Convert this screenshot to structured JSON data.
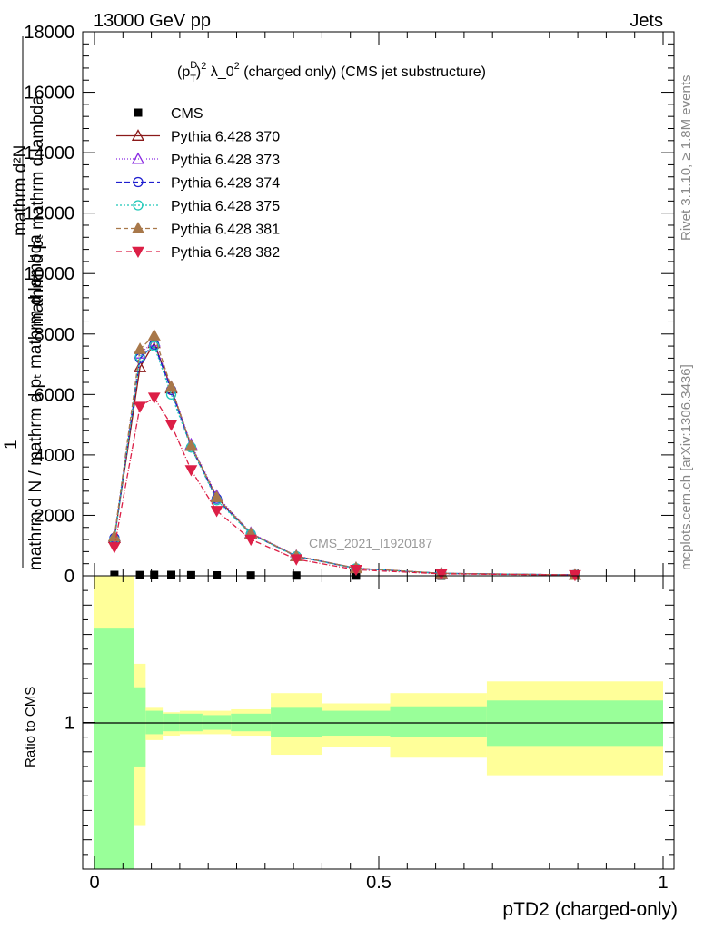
{
  "header": {
    "left": "13000 GeV pp",
    "right": "Jets"
  },
  "side_labels": {
    "rivet": "Rivet 3.1.10, ≥ 1.8M events",
    "mcplots": "mcplots.cern.ch [arXiv:1306.3436]"
  },
  "chart_data": [
    {
      "type": "line",
      "title": "(p_T^D)^2 λ_0^2 (charged only) (CMS jet substructure)",
      "title_parts": {
        "base": "(p",
        "sup1": "D",
        "sub1": "T",
        "mid": ")",
        "sup2": "2",
        "rest": " λ_0",
        "sup3": "2",
        "tail": " (charged only) (CMS jet substructure)"
      },
      "watermark": "CMS_2021_I1920187",
      "ylabel_lines": [
        "mathrm d²N",
        "1",
        "mathrm d N / mathrm d pₜ mathrm d lambda"
      ],
      "ylabel_overlap": [
        "mathrm d²N",
        "mathrm d pₜ mathrm d lambda",
        "1",
        "mathrm d N / mathrm d pₜ mathrm d lambda"
      ],
      "xlim": [
        0,
        1
      ],
      "ylim": [
        0,
        18000
      ],
      "y_ticks": [
        0,
        2000,
        4000,
        6000,
        8000,
        10000,
        12000,
        14000,
        16000,
        18000
      ],
      "y_tick_labels": [
        "0",
        "2000",
        "4000",
        "6000",
        "8000",
        "10000",
        "12000",
        "14000",
        "16000",
        "18000"
      ],
      "legend_position": "top-left",
      "x": [
        0.035,
        0.08,
        0.105,
        0.135,
        0.17,
        0.215,
        0.275,
        0.355,
        0.46,
        0.61,
        0.845
      ],
      "series": [
        {
          "name": "CMS",
          "color": "#000000",
          "marker": "square-filled",
          "dash": "",
          "values": [
            30,
            25,
            30,
            30,
            20,
            15,
            10,
            8,
            5,
            3,
            2
          ]
        },
        {
          "name": "Pythia 6.428 370",
          "color": "#8b1a1a",
          "marker": "triangle-open",
          "dash": "",
          "values": [
            1250,
            6900,
            7700,
            6200,
            4300,
            2600,
            1400,
            650,
            250,
            80,
            30
          ]
        },
        {
          "name": "Pythia 6.428 373",
          "color": "#8a2be2",
          "marker": "triangle-open",
          "dash": "1,2",
          "values": [
            1300,
            7350,
            7750,
            6250,
            4350,
            2650,
            1420,
            660,
            255,
            82,
            30
          ]
        },
        {
          "name": "Pythia 6.428 374",
          "color": "#1f1fcf",
          "marker": "circle-open",
          "dash": "6,3",
          "values": [
            1250,
            7200,
            7650,
            6150,
            4250,
            2550,
            1380,
            640,
            245,
            80,
            30
          ]
        },
        {
          "name": "Pythia 6.428 375",
          "color": "#1fc8b8",
          "marker": "circle-open",
          "dash": "2,2",
          "values": [
            1200,
            7250,
            7600,
            6000,
            4250,
            2500,
            1380,
            640,
            245,
            80,
            30
          ]
        },
        {
          "name": "Pythia 6.428 381",
          "color": "#a8784a",
          "marker": "triangle-filled",
          "dash": "5,3",
          "values": [
            1300,
            7500,
            7950,
            6250,
            4300,
            2600,
            1400,
            650,
            255,
            82,
            30
          ]
        },
        {
          "name": "Pythia 6.428 382",
          "color": "#dc1f46",
          "marker": "triangledown-filled",
          "dash": "6,2,1,2",
          "values": [
            950,
            5600,
            5900,
            5000,
            3500,
            2150,
            1200,
            550,
            200,
            65,
            25
          ]
        }
      ]
    },
    {
      "type": "area",
      "ylabel": "Ratio to CMS",
      "xlabel": "pTD2 (charged-only)",
      "xlim": [
        0,
        1
      ],
      "ylim": [
        0.5,
        1.5
      ],
      "y_ticks": [
        1
      ],
      "y_tick_labels": [
        "1"
      ],
      "x_ticks": [
        0,
        0.5,
        1
      ],
      "x_tick_labels": [
        "0",
        "0.5",
        "1"
      ],
      "bands": [
        {
          "x0": 0.0,
          "x1": 0.07,
          "green": [
            0.5,
            1.32
          ],
          "yellow": [
            0.5,
            1.5
          ]
        },
        {
          "x0": 0.07,
          "x1": 0.09,
          "green": [
            0.85,
            1.12
          ],
          "yellow": [
            0.65,
            1.2
          ]
        },
        {
          "x0": 0.09,
          "x1": 0.12,
          "green": [
            0.96,
            1.04
          ],
          "yellow": [
            0.94,
            1.05
          ]
        },
        {
          "x0": 0.12,
          "x1": 0.15,
          "green": [
            0.97,
            1.03
          ],
          "yellow": [
            0.955,
            1.035
          ]
        },
        {
          "x0": 0.15,
          "x1": 0.19,
          "green": [
            0.97,
            1.03
          ],
          "yellow": [
            0.96,
            1.04
          ]
        },
        {
          "x0": 0.19,
          "x1": 0.24,
          "green": [
            0.975,
            1.025
          ],
          "yellow": [
            0.96,
            1.04
          ]
        },
        {
          "x0": 0.24,
          "x1": 0.31,
          "green": [
            0.97,
            1.03
          ],
          "yellow": [
            0.955,
            1.045
          ]
        },
        {
          "x0": 0.31,
          "x1": 0.4,
          "green": [
            0.95,
            1.05
          ],
          "yellow": [
            0.89,
            1.1
          ]
        },
        {
          "x0": 0.4,
          "x1": 0.52,
          "green": [
            0.955,
            1.04
          ],
          "yellow": [
            0.915,
            1.065
          ]
        },
        {
          "x0": 0.52,
          "x1": 0.69,
          "green": [
            0.95,
            1.055
          ],
          "yellow": [
            0.88,
            1.1
          ]
        },
        {
          "x0": 0.69,
          "x1": 1.0,
          "green": [
            0.92,
            1.075
          ],
          "yellow": [
            0.82,
            1.14
          ]
        }
      ]
    }
  ]
}
